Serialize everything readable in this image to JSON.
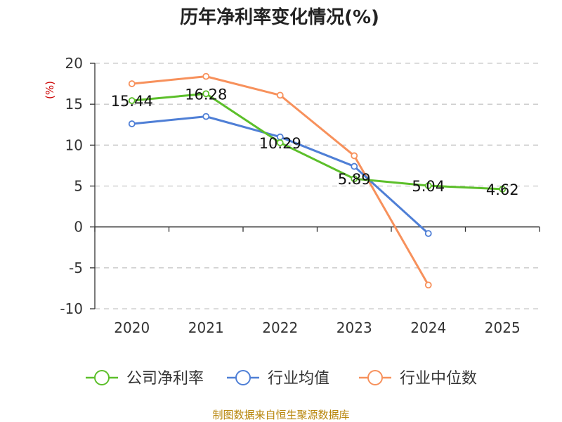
{
  "chart_data": {
    "type": "line",
    "title": "历年净利率变化情况(%)",
    "ylabel": "(%)",
    "xlabel": "",
    "categories": [
      "2020",
      "2021",
      "2022",
      "2023",
      "2024",
      "2025"
    ],
    "ylim": [
      -10,
      20
    ],
    "yticks": [
      20,
      15,
      10,
      5,
      0,
      -5,
      -10
    ],
    "grid": true,
    "legend_position": "bottom",
    "series": [
      {
        "name": "公司净利率",
        "color": "#5cbf2a",
        "values": [
          15.44,
          16.28,
          10.29,
          5.89,
          5.04,
          4.62
        ],
        "labels": [
          "15.44",
          "16.28",
          "10.29",
          "5.89",
          "5.04",
          "4.62"
        ]
      },
      {
        "name": "行业均值",
        "color": "#4f7fd6",
        "values": [
          12.6,
          13.5,
          11.0,
          7.4,
          -0.8,
          null
        ]
      },
      {
        "name": "行业中位数",
        "color": "#f7915c",
        "values": [
          17.5,
          18.4,
          16.1,
          8.7,
          -7.1,
          null
        ]
      }
    ],
    "source": "制图数据来自恒生聚源数据库"
  }
}
